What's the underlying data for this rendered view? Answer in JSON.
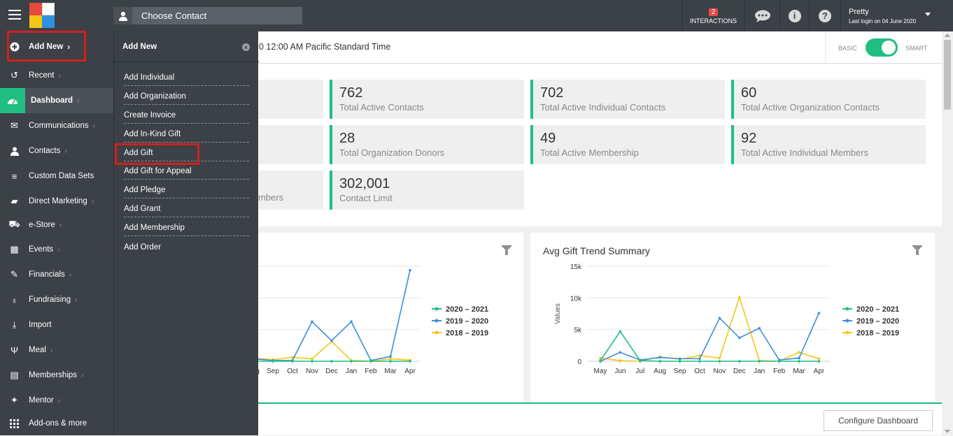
{
  "topbar": {
    "choose_contact": "Choose Contact",
    "interactions_count": "2",
    "interactions_label": "INTERACTIONS",
    "user_name": "Pretty",
    "last_login": "Last login on 04 June 2020"
  },
  "sidebar": {
    "items": [
      {
        "label": "Add New",
        "icon": "plus-circle-icon"
      },
      {
        "label": "Recent",
        "icon": "history-icon"
      },
      {
        "label": "Dashboard",
        "icon": "dashboard-icon"
      },
      {
        "label": "Communications",
        "icon": "envelope-icon"
      },
      {
        "label": "Contacts",
        "icon": "user-icon"
      },
      {
        "label": "Custom Data Sets",
        "icon": "database-icon"
      },
      {
        "label": "Direct Marketing",
        "icon": "car-icon"
      },
      {
        "label": "e-Store",
        "icon": "cart-icon"
      },
      {
        "label": "Events",
        "icon": "calendar-icon"
      },
      {
        "label": "Financials",
        "icon": "money-icon"
      },
      {
        "label": "Fundraising",
        "icon": "money-bag-icon"
      },
      {
        "label": "Import",
        "icon": "import-icon"
      },
      {
        "label": "Meal",
        "icon": "cutlery-icon"
      },
      {
        "label": "Memberships",
        "icon": "id-card-icon"
      },
      {
        "label": "Mentor",
        "icon": "mentor-icon"
      },
      {
        "label": "Add-ons & more",
        "icon": "grid-icon"
      }
    ]
  },
  "flyout": {
    "title": "Add New",
    "items": [
      "Add Individual",
      "Add Organization",
      "Create Invoice",
      "Add In-Kind Gift",
      "Add Gift",
      "Add Gift for Appeal",
      "Add Pledge",
      "Add Grant",
      "Add Membership",
      "Add Order"
    ]
  },
  "header": {
    "timezone_text": "0 12:00 AM Pacific Standard Time",
    "basic_label": "BASIC",
    "smart_label": "SMART"
  },
  "stats": [
    {
      "value": "762",
      "label": "Total Active Contacts"
    },
    {
      "value": "702",
      "label": "Total Active Individual Contacts"
    },
    {
      "value": "60",
      "label": "Total Active Organization Contacts"
    },
    {
      "value": "28",
      "label": "Total Organization Donors"
    },
    {
      "value": "49",
      "label": "Total Active Membership"
    },
    {
      "value": "92",
      "label": "Total Active Individual Members"
    },
    {
      "value": "302,001",
      "label": "Contact Limit"
    }
  ],
  "partial_stat_label": "mbers",
  "configure_button": "Configure Dashboard",
  "colors": {
    "accent": "#1fbf81",
    "dark": "#3b4146",
    "highlight": "#d21f1f"
  },
  "chart_data": [
    {
      "type": "line",
      "title": "",
      "x": [
        "Aug",
        "Sep",
        "Oct",
        "Nov",
        "Dec",
        "Jan",
        "Feb",
        "Mar",
        "Apr"
      ],
      "series": [
        {
          "name": "2020 – 2021",
          "color": "#1fbf81",
          "values": [
            0,
            0,
            0,
            0,
            0,
            0,
            0,
            0,
            0
          ]
        },
        {
          "name": "2019 – 2020",
          "color": "#3b8ee0",
          "values": [
            300,
            100,
            100,
            5000,
            2600,
            5000,
            100,
            600,
            11500
          ]
        },
        {
          "name": "2018 – 2019",
          "color": "#f5c518",
          "values": [
            400,
            200,
            500,
            300,
            2500,
            100,
            0,
            300,
            150
          ]
        }
      ]
    },
    {
      "type": "line",
      "title": "Avg Gift Trend Summary",
      "ylabel": "Values",
      "x": [
        "May",
        "Jun",
        "Jul",
        "Aug",
        "Sep",
        "Oct",
        "Nov",
        "Dec",
        "Jan",
        "Feb",
        "Mar",
        "Apr"
      ],
      "yticks": [
        "0",
        "5k",
        "10k",
        "15k"
      ],
      "ylim": [
        0,
        15000
      ],
      "series": [
        {
          "name": "2020 – 2021",
          "color": "#1fbf81",
          "values": [
            100,
            4700,
            100,
            0,
            0,
            0,
            0,
            0,
            0,
            0,
            0,
            0
          ]
        },
        {
          "name": "2019 – 2020",
          "color": "#3b8ee0",
          "values": [
            0,
            1400,
            200,
            600,
            400,
            400,
            6800,
            3700,
            5200,
            200,
            500,
            7600
          ]
        },
        {
          "name": "2018 – 2019",
          "color": "#f5c518",
          "values": [
            500,
            100,
            0,
            700,
            300,
            900,
            500,
            10100,
            100,
            0,
            1400,
            400
          ]
        }
      ]
    }
  ]
}
